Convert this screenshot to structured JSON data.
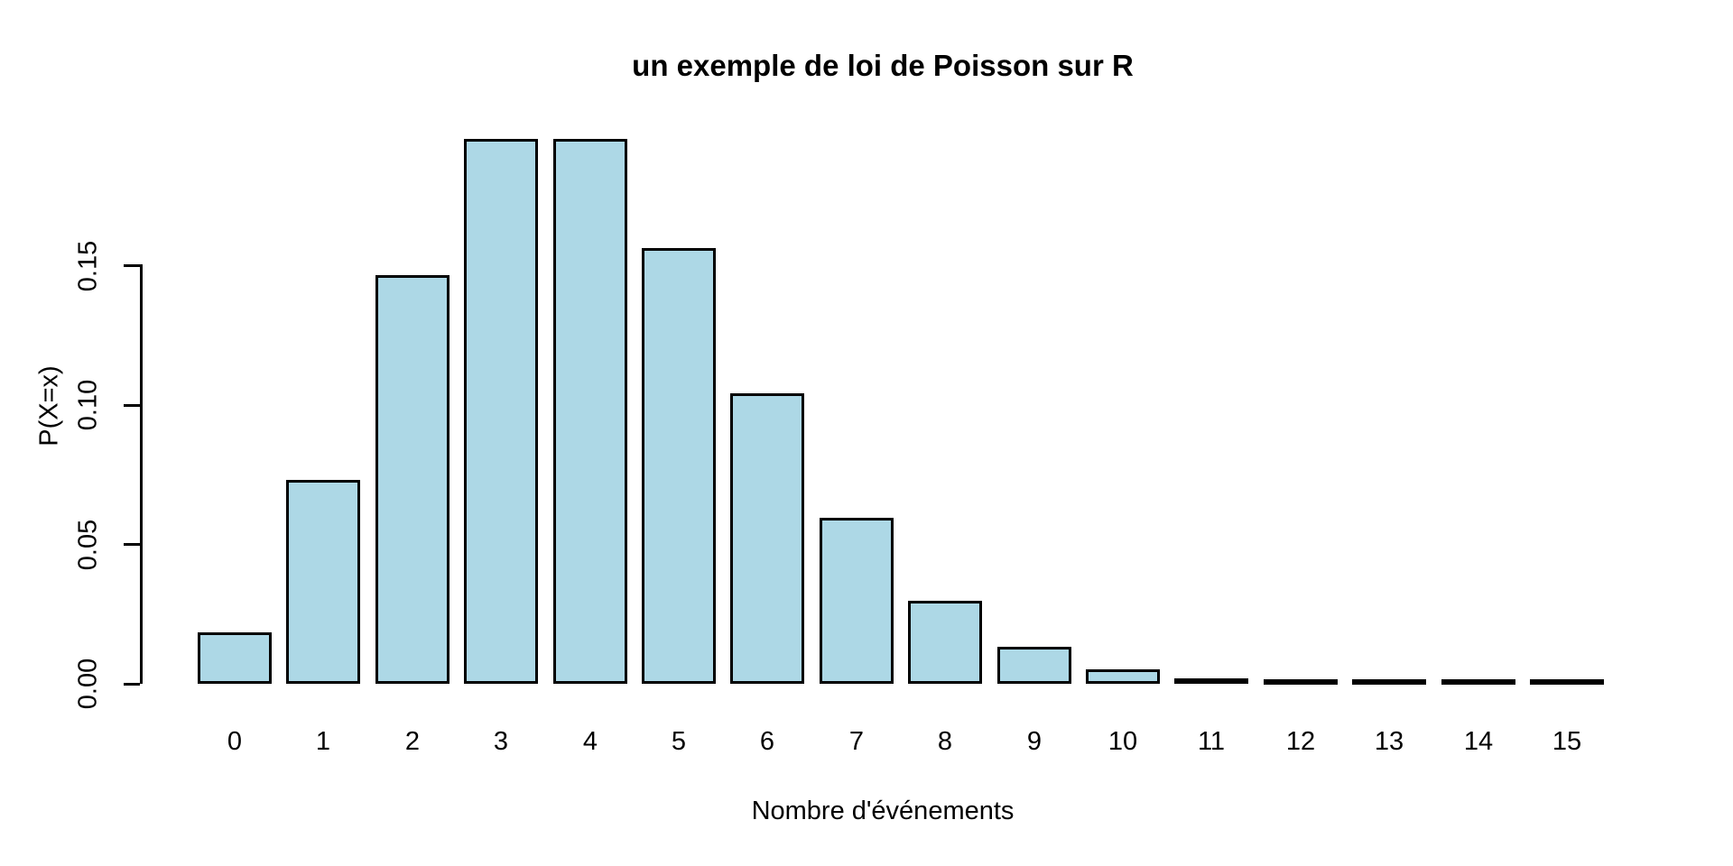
{
  "chart_data": {
    "type": "bar",
    "title": "un exemple de loi de Poisson sur R",
    "xlabel": "Nombre d'événements",
    "ylabel": "P(X=x)",
    "categories": [
      "0",
      "1",
      "2",
      "3",
      "4",
      "5",
      "6",
      "7",
      "8",
      "9",
      "10",
      "11",
      "12",
      "13",
      "14",
      "15"
    ],
    "values": [
      0.018316,
      0.073263,
      0.146525,
      0.195367,
      0.195367,
      0.156293,
      0.104196,
      0.05954,
      0.02977,
      0.013231,
      0.005292,
      0.001925,
      0.000642,
      0.000197,
      5.6e-05,
      1.5e-05
    ],
    "y_ticks": [
      {
        "value": 0.0,
        "label": "0.00"
      },
      {
        "value": 0.05,
        "label": "0.05"
      },
      {
        "value": 0.1,
        "label": "0.10"
      },
      {
        "value": 0.15,
        "label": "0.15"
      }
    ],
    "ylim": [
      0,
      0.195367
    ],
    "grid": false,
    "legend_position": "none",
    "bar_fill_color": "#ADD8E6",
    "bar_border_color": "#000000",
    "axis_color": "#000000",
    "background_color": "#FFFFFF"
  }
}
